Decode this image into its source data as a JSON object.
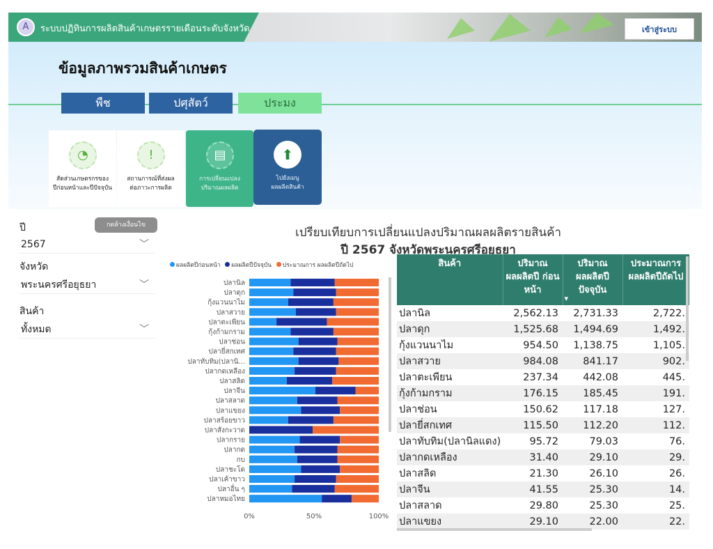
{
  "header": {
    "app_title": "ระบบปฏิทินการผลิตสินค้าเกษตรรายเดือนระดับจังหวัด",
    "login_label": "เข้าสู่ระบบ"
  },
  "page_title": "ข้อมูลภาพรวมสินค้าเกษตร",
  "tabs": [
    {
      "label": "พืช"
    },
    {
      "label": "ปศุสัตว์"
    },
    {
      "label": "ประมง"
    }
  ],
  "cards": [
    {
      "line1": "สัดส่วนเกษตรกรของ",
      "line2": "ปีก่อนหน้าและปีปัจจุบัน"
    },
    {
      "line1": "สถานการณ์ที่ส่งผล",
      "line2": "ต่อภาวะการผลิต"
    },
    {
      "line1": "การเปลี่ยนแปลง",
      "line2": "ปริมาณผลผลิต"
    },
    {
      "line1": "ไปยังเมนู",
      "line2": "ผลผลิตสินค้า"
    }
  ],
  "filters": {
    "clear_label": "กดล้างเงื่อนไข",
    "year_label": "ปี",
    "year_value": "2567",
    "province_label": "จังหวัด",
    "province_value": "พระนครศรีอยุธยา",
    "product_label": "สินค้า",
    "product_value": "ทั้งหมด"
  },
  "colors": {
    "prev": "#2196f3",
    "curr": "#1a2f9e",
    "next": "#f06a32"
  },
  "chart_data": {
    "type": "bar",
    "stacked": "100%",
    "orientation": "horizontal",
    "title": "เปรียบเทียบการเปลี่ยนแปลงปริมาณผลผลิตรายสินค้า",
    "subtitle": "ปี 2567 จังหวัดพระนครศรีอยุธยา",
    "legend": [
      "ผลผลิตปีก่อนหน้า",
      "ผลผลิตปีปัจจุบัน",
      "ประมาณการ ผลผลิตปีถัดไป"
    ],
    "x_ticks": [
      "0%",
      "50%",
      "100%"
    ],
    "categories": [
      "ปลานิล",
      "ปลาดุก",
      "กุ้งแวนนาไม",
      "ปลาสวาย",
      "ปลาตะเพียน",
      "กุ้งก้ามกราม",
      "ปลาช่อน",
      "ปลายี่สกเทศ",
      "ปลาทับทิม(ปลานิ...",
      "ปลากดเหลือง",
      "ปลาสลิด",
      "ปลาจีน",
      "ปลาสลาด",
      "ปลาแขยง",
      "ปลาสร้อยขาว",
      "ปลาสังกะวาด",
      "ปลากราย",
      "ปลากด",
      "กบ",
      "ปลาชะโด",
      "ปลาเค้าขาว",
      "ปลาอื่น ๆ",
      "ปลาหมอไทย"
    ],
    "series": [
      {
        "name": "ผลผลิตปีก่อนหน้า",
        "values": [
          32,
          34,
          30,
          36,
          21,
          32,
          38,
          34,
          38,
          35,
          29,
          51,
          37,
          40,
          30,
          0,
          39,
          35,
          37,
          40,
          35,
          33,
          56
        ]
      },
      {
        "name": "ผลผลิตปีปัจจุบัน",
        "values": [
          34,
          33,
          35,
          31,
          39,
          33,
          30,
          33,
          31,
          32,
          35,
          31,
          31,
          30,
          35,
          49,
          31,
          33,
          31,
          30,
          32,
          33,
          23
        ]
      },
      {
        "name": "ประมาณการ ผลผลิตปีถัดไป",
        "values": [
          34,
          33,
          35,
          33,
          40,
          35,
          32,
          33,
          31,
          33,
          36,
          18,
          32,
          30,
          35,
          51,
          30,
          32,
          32,
          30,
          33,
          34,
          21
        ]
      }
    ]
  },
  "table": {
    "headers": [
      "สินค้า",
      "ปริมาณ ผลผลิตปี ก่อนหน้า",
      "ปริมาณ ผลผลิตปี ปัจจุบัน",
      "ประมาณการ ผลผลิตปีถัดไป"
    ],
    "rows": [
      [
        "ปลานิล",
        "2,562.13",
        "2,731.33",
        "2,722."
      ],
      [
        "ปลาดุก",
        "1,525.68",
        "1,494.69",
        "1,492."
      ],
      [
        "กุ้งแวนนาไม",
        "954.50",
        "1,138.75",
        "1,105."
      ],
      [
        "ปลาสวาย",
        "984.08",
        "841.17",
        "902."
      ],
      [
        "ปลาตะเพียน",
        "237.34",
        "442.08",
        "445."
      ],
      [
        "กุ้งก้ามกราม",
        "176.15",
        "185.45",
        "191."
      ],
      [
        "ปลาช่อน",
        "150.62",
        "117.18",
        "127."
      ],
      [
        "ปลายี่สกเทศ",
        "115.50",
        "112.20",
        "112."
      ],
      [
        "ปลาทับทิม(ปลานิลแดง)",
        "95.72",
        "79.03",
        "76."
      ],
      [
        "ปลากดเหลือง",
        "31.40",
        "29.10",
        "29."
      ],
      [
        "ปลาสลิด",
        "21.30",
        "26.10",
        "26."
      ],
      [
        "ปลาจีน",
        "41.55",
        "25.30",
        "14."
      ],
      [
        "ปลาสลาด",
        "29.80",
        "25.30",
        "25."
      ],
      [
        "ปลาแขยง",
        "29.10",
        "22.00",
        "22."
      ]
    ]
  }
}
